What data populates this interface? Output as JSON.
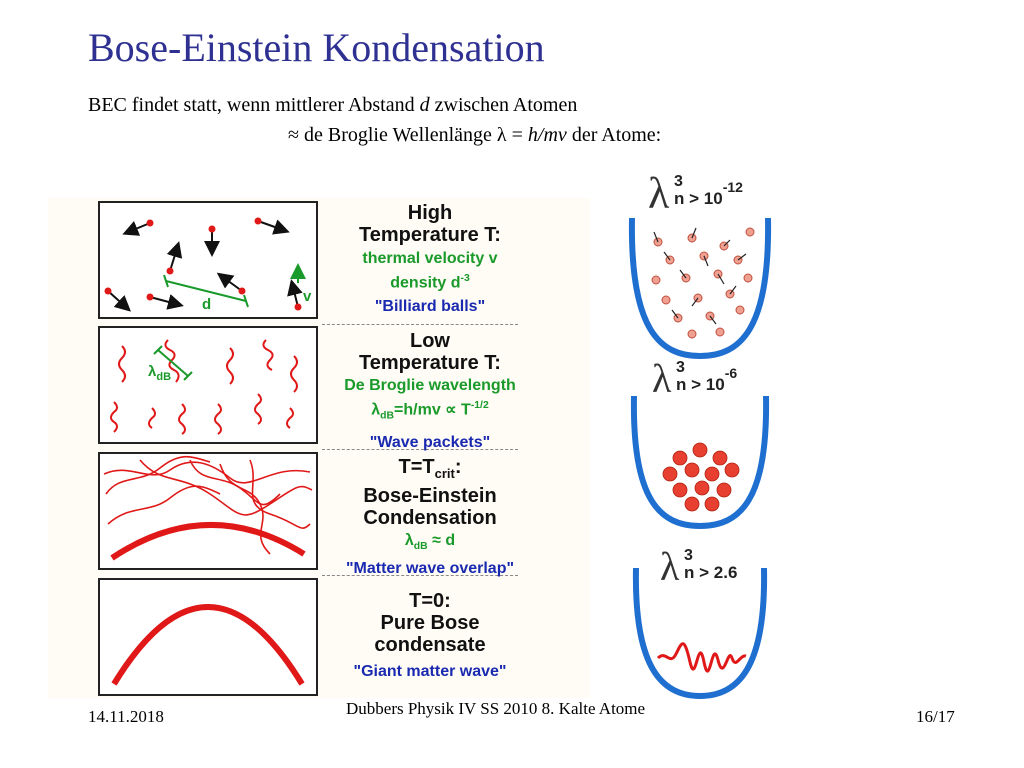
{
  "title": "Bose-Einstein Kondensation",
  "intro": {
    "line1_a": "BEC findet statt, wenn mittlerer Abstand ",
    "line1_var": "d",
    "line1_b": " zwischen Atomen",
    "line2_a": "≈ de Broglie Wellenlänge λ = ",
    "line2_var": "h/mv",
    "line2_b": " der Atome:"
  },
  "stages": [
    {
      "heading1": "High",
      "heading2": "Temperature T:",
      "green1": "thermal velocity v",
      "green2_base": "density d",
      "green2_sup": "-3",
      "quote": "\"Billiard balls\"",
      "box_label_d": "d",
      "box_label_v": "v"
    },
    {
      "heading1": "Low",
      "heading2": "Temperature T:",
      "green1": "De Broglie wavelength",
      "green2_l": "λ",
      "green2_sub": "dB",
      "green2_rest": "=h/mv ∝ T",
      "green2_sup": "-1/2",
      "quote": "\"Wave packets\"",
      "box_l": "λ",
      "box_sub": "dB"
    },
    {
      "heading1_base": "T=T",
      "heading1_sub": "crit",
      "heading1_end": ":",
      "heading2": "Bose-Einstein",
      "heading3": "Condensation",
      "green_l": "λ",
      "green_sub": "dB",
      "green_rest": " ≈ d",
      "quote": "\"Matter wave overlap\""
    },
    {
      "heading1": "T=0:",
      "heading2": "Pure Bose",
      "heading3": "condensate",
      "quote": "\"Giant matter wave\""
    }
  ],
  "traps": [
    {
      "lambda": "λ",
      "sup": "3",
      "sub": "n",
      "rest": " > 10",
      "exp": "-12"
    },
    {
      "lambda": "λ",
      "sup": "3",
      "sub": "n",
      "rest": " > 10",
      "exp": "-6"
    },
    {
      "lambda": "λ",
      "sup": "3",
      "sub": "n",
      "rest": " > 2.6",
      "exp": ""
    }
  ],
  "footer": {
    "date": "14.11.2018",
    "course": "Dubbers Physik IV SS 2010 8. Kalte Atome",
    "page": "16/17"
  },
  "colors": {
    "title": "#2e3191",
    "green": "#1a9a2a",
    "blue": "#1a2ab0",
    "red": "#e01818",
    "trap": "#1f6fd0"
  }
}
